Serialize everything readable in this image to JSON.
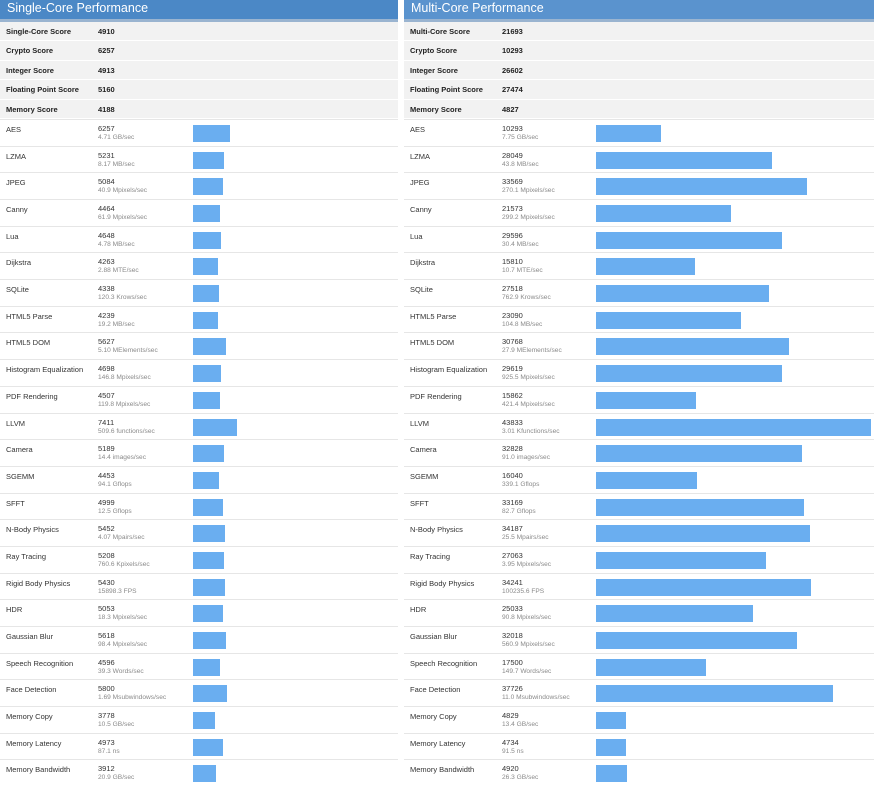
{
  "bar_color": "#6aaef0",
  "panels": [
    {
      "title": "Single-Core Performance",
      "header_color": "#4b88c6",
      "summary": [
        {
          "label": "Single-Core Score",
          "value": "4910"
        },
        {
          "label": "Crypto Score",
          "value": "6257"
        },
        {
          "label": "Integer Score",
          "value": "4913"
        },
        {
          "label": "Floating Point Score",
          "value": "5160"
        },
        {
          "label": "Memory Score",
          "value": "4188"
        }
      ],
      "benchmarks": [
        {
          "name": "AES",
          "score": "6257",
          "rate": "4.71 GB/sec"
        },
        {
          "name": "LZMA",
          "score": "5231",
          "rate": "8.17 MB/sec"
        },
        {
          "name": "JPEG",
          "score": "5084",
          "rate": "40.9 Mpixels/sec"
        },
        {
          "name": "Canny",
          "score": "4464",
          "rate": "61.9 Mpixels/sec"
        },
        {
          "name": "Lua",
          "score": "4648",
          "rate": "4.78 MB/sec"
        },
        {
          "name": "Dijkstra",
          "score": "4263",
          "rate": "2.88 MTE/sec"
        },
        {
          "name": "SQLite",
          "score": "4338",
          "rate": "120.3 Krows/sec"
        },
        {
          "name": "HTML5 Parse",
          "score": "4239",
          "rate": "19.2 MB/sec"
        },
        {
          "name": "HTML5 DOM",
          "score": "5627",
          "rate": "5.10 MElements/sec"
        },
        {
          "name": "Histogram Equalization",
          "score": "4698",
          "rate": "146.8 Mpixels/sec"
        },
        {
          "name": "PDF Rendering",
          "score": "4507",
          "rate": "119.8 Mpixels/sec"
        },
        {
          "name": "LLVM",
          "score": "7411",
          "rate": "509.6 functions/sec"
        },
        {
          "name": "Camera",
          "score": "5189",
          "rate": "14.4 images/sec"
        },
        {
          "name": "SGEMM",
          "score": "4453",
          "rate": "94.1 Gflops"
        },
        {
          "name": "SFFT",
          "score": "4999",
          "rate": "12.5 Gflops"
        },
        {
          "name": "N-Body Physics",
          "score": "5452",
          "rate": "4.07 Mpairs/sec"
        },
        {
          "name": "Ray Tracing",
          "score": "5208",
          "rate": "760.6 Kpixels/sec"
        },
        {
          "name": "Rigid Body Physics",
          "score": "5430",
          "rate": "15898.3 FPS"
        },
        {
          "name": "HDR",
          "score": "5053",
          "rate": "18.3 Mpixels/sec"
        },
        {
          "name": "Gaussian Blur",
          "score": "5618",
          "rate": "98.4 Mpixels/sec"
        },
        {
          "name": "Speech Recognition",
          "score": "4596",
          "rate": "39.3 Words/sec"
        },
        {
          "name": "Face Detection",
          "score": "5800",
          "rate": "1.69 Msubwindows/sec"
        },
        {
          "name": "Memory Copy",
          "score": "3778",
          "rate": "10.5 GB/sec"
        },
        {
          "name": "Memory Latency",
          "score": "4973",
          "rate": "87.1 ns"
        },
        {
          "name": "Memory Bandwidth",
          "score": "3912",
          "rate": "20.9 GB/sec"
        }
      ]
    },
    {
      "title": "Multi-Core Performance",
      "header_color": "#5a93ce",
      "summary": [
        {
          "label": "Multi-Core Score",
          "value": "21693"
        },
        {
          "label": "Crypto Score",
          "value": "10293"
        },
        {
          "label": "Integer Score",
          "value": "26602"
        },
        {
          "label": "Floating Point Score",
          "value": "27474"
        },
        {
          "label": "Memory Score",
          "value": "4827"
        }
      ],
      "benchmarks": [
        {
          "name": "AES",
          "score": "10293",
          "rate": "7.75 GB/sec"
        },
        {
          "name": "LZMA",
          "score": "28049",
          "rate": "43.8 MB/sec"
        },
        {
          "name": "JPEG",
          "score": "33569",
          "rate": "270.1 Mpixels/sec"
        },
        {
          "name": "Canny",
          "score": "21573",
          "rate": "299.2 Mpixels/sec"
        },
        {
          "name": "Lua",
          "score": "29596",
          "rate": "30.4 MB/sec"
        },
        {
          "name": "Dijkstra",
          "score": "15810",
          "rate": "10.7 MTE/sec"
        },
        {
          "name": "SQLite",
          "score": "27518",
          "rate": "762.9 Krows/sec"
        },
        {
          "name": "HTML5 Parse",
          "score": "23090",
          "rate": "104.8 MB/sec"
        },
        {
          "name": "HTML5 DOM",
          "score": "30768",
          "rate": "27.9 MElements/sec"
        },
        {
          "name": "Histogram Equalization",
          "score": "29619",
          "rate": "925.5 Mpixels/sec"
        },
        {
          "name": "PDF Rendering",
          "score": "15862",
          "rate": "421.4 Mpixels/sec"
        },
        {
          "name": "LLVM",
          "score": "43833",
          "rate": "3.01 Kfunctions/sec"
        },
        {
          "name": "Camera",
          "score": "32828",
          "rate": "91.0 images/sec"
        },
        {
          "name": "SGEMM",
          "score": "16040",
          "rate": "339.1 Gflops"
        },
        {
          "name": "SFFT",
          "score": "33169",
          "rate": "82.7 Gflops"
        },
        {
          "name": "N-Body Physics",
          "score": "34187",
          "rate": "25.5 Mpairs/sec"
        },
        {
          "name": "Ray Tracing",
          "score": "27063",
          "rate": "3.95 Mpixels/sec"
        },
        {
          "name": "Rigid Body Physics",
          "score": "34241",
          "rate": "100235.6 FPS"
        },
        {
          "name": "HDR",
          "score": "25033",
          "rate": "90.8 Mpixels/sec"
        },
        {
          "name": "Gaussian Blur",
          "score": "32018",
          "rate": "560.9 Mpixels/sec"
        },
        {
          "name": "Speech Recognition",
          "score": "17500",
          "rate": "149.7 Words/sec"
        },
        {
          "name": "Face Detection",
          "score": "37726",
          "rate": "11.0 Msubwindows/sec"
        },
        {
          "name": "Memory Copy",
          "score": "4829",
          "rate": "13.4 GB/sec"
        },
        {
          "name": "Memory Latency",
          "score": "4734",
          "rate": "91.5 ns"
        },
        {
          "name": "Memory Bandwidth",
          "score": "4920",
          "rate": "26.3 GB/sec"
        }
      ]
    }
  ]
}
